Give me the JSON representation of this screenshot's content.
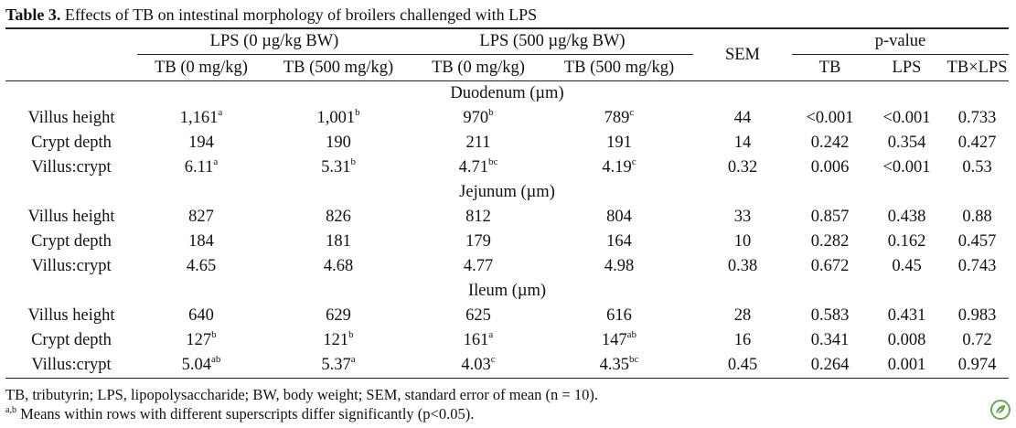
{
  "caption": {
    "label": "Table 3.",
    "text": " Effects of TB on intestinal morphology of broilers challenged with LPS"
  },
  "header": {
    "group_lps0": "LPS (0 µg/kg BW)",
    "group_lps500": "LPS (500 µg/kg BW)",
    "sem": "SEM",
    "pvalue": "p-value",
    "sub": [
      "TB (0 mg/kg)",
      "TB (500 mg/kg)",
      "TB (0 mg/kg)",
      "TB (500 mg/kg)"
    ],
    "p_sub": [
      "TB",
      "LPS",
      "TB×LPS"
    ]
  },
  "sections": [
    {
      "title": "Duodenum (µm)",
      "rows": [
        {
          "label": "Villus height",
          "vals": [
            [
              "1,161",
              "a"
            ],
            [
              "1,001",
              "b"
            ],
            [
              "970",
              "b"
            ],
            [
              "789",
              "c"
            ]
          ],
          "sem": "44",
          "p": [
            "<0.001",
            "<0.001",
            "0.733"
          ]
        },
        {
          "label": "Crypt depth",
          "vals": [
            [
              "194",
              ""
            ],
            [
              "190",
              ""
            ],
            [
              "211",
              ""
            ],
            [
              "191",
              ""
            ]
          ],
          "sem": "14",
          "p": [
            "0.242",
            "0.354",
            "0.427"
          ]
        },
        {
          "label": "Villus:crypt",
          "vals": [
            [
              "6.11",
              "a"
            ],
            [
              "5.31",
              "b"
            ],
            [
              "4.71",
              "bc"
            ],
            [
              "4.19",
              "c"
            ]
          ],
          "sem": "0.32",
          "p": [
            "0.006",
            "<0.001",
            "0.53"
          ]
        }
      ]
    },
    {
      "title": "Jejunum (µm)",
      "rows": [
        {
          "label": "Villus height",
          "vals": [
            [
              "827",
              ""
            ],
            [
              "826",
              ""
            ],
            [
              "812",
              ""
            ],
            [
              "804",
              ""
            ]
          ],
          "sem": "33",
          "p": [
            "0.857",
            "0.438",
            "0.88"
          ]
        },
        {
          "label": "Crypt depth",
          "vals": [
            [
              "184",
              ""
            ],
            [
              "181",
              ""
            ],
            [
              "179",
              ""
            ],
            [
              "164",
              ""
            ]
          ],
          "sem": "10",
          "p": [
            "0.282",
            "0.162",
            "0.457"
          ]
        },
        {
          "label": "Villus:crypt",
          "vals": [
            [
              "4.65",
              ""
            ],
            [
              "4.68",
              ""
            ],
            [
              "4.77",
              ""
            ],
            [
              "4.98",
              ""
            ]
          ],
          "sem": "0.38",
          "p": [
            "0.672",
            "0.45",
            "0.743"
          ]
        }
      ]
    },
    {
      "title": "Ileum (µm)",
      "rows": [
        {
          "label": "Villus height",
          "vals": [
            [
              "640",
              ""
            ],
            [
              "629",
              ""
            ],
            [
              "625",
              ""
            ],
            [
              "616",
              ""
            ]
          ],
          "sem": "28",
          "p": [
            "0.583",
            "0.431",
            "0.983"
          ]
        },
        {
          "label": "Crypt depth",
          "vals": [
            [
              "127",
              "b"
            ],
            [
              "121",
              "b"
            ],
            [
              "161",
              "a"
            ],
            [
              "147",
              "ab"
            ]
          ],
          "sem": "16",
          "p": [
            "0.341",
            "0.008",
            "0.72"
          ]
        },
        {
          "label": "Villus:crypt",
          "vals": [
            [
              "5.04",
              "ab"
            ],
            [
              "5.37",
              "a"
            ],
            [
              "4.03",
              "c"
            ],
            [
              "4.35",
              "bc"
            ]
          ],
          "sem": "0.45",
          "p": [
            "0.264",
            "0.001",
            "0.974"
          ]
        }
      ]
    }
  ],
  "footnotes": {
    "abbrev": "TB, tributyrin; LPS, lipopolysaccharide; BW, body weight; SEM, standard error of mean (n = 10).",
    "sig_sup": "a,b",
    "sig_text": " Means within rows with different superscripts differ significantly (p<0.05)."
  },
  "logo": {
    "icon": "leaf-logo-icon",
    "color": "#6aa84f"
  }
}
